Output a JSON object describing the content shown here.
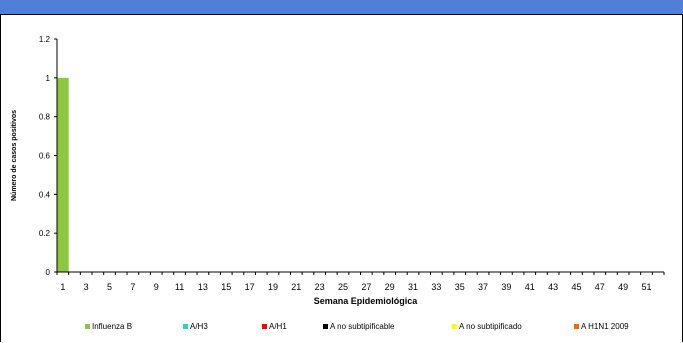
{
  "chart_data": {
    "type": "bar",
    "xlabel": "Semana Epidemiológica",
    "ylabel": "Número de casos positivos",
    "ylim": [
      0,
      1.2
    ],
    "yticks": [
      "0",
      "0.2",
      "0.4",
      "0.6",
      "0.8",
      "1",
      "1.2"
    ],
    "x_tick_labels": [
      "1",
      "3",
      "5",
      "7",
      "9",
      "11",
      "13",
      "15",
      "17",
      "19",
      "21",
      "23",
      "25",
      "27",
      "29",
      "31",
      "33",
      "35",
      "37",
      "39",
      "41",
      "43",
      "45",
      "47",
      "49",
      "51"
    ],
    "num_weeks": 52,
    "series": [
      {
        "name": "Influenza  B",
        "color": "#8dc63f",
        "values": {
          "1": 1
        }
      },
      {
        "name": "A/H3",
        "color": "#33cccc",
        "values": {}
      },
      {
        "name": "A/H1",
        "color": "#ff0000",
        "values": {}
      },
      {
        "name": "A no subtipificable",
        "color": "#000000",
        "values": {}
      },
      {
        "name": "A no subtipificado",
        "color": "#ffff00",
        "values": {}
      },
      {
        "name": "A H1N1 2009",
        "color": "#ff6600",
        "values": {}
      }
    ],
    "grid": false,
    "legend_position": "bottom"
  }
}
